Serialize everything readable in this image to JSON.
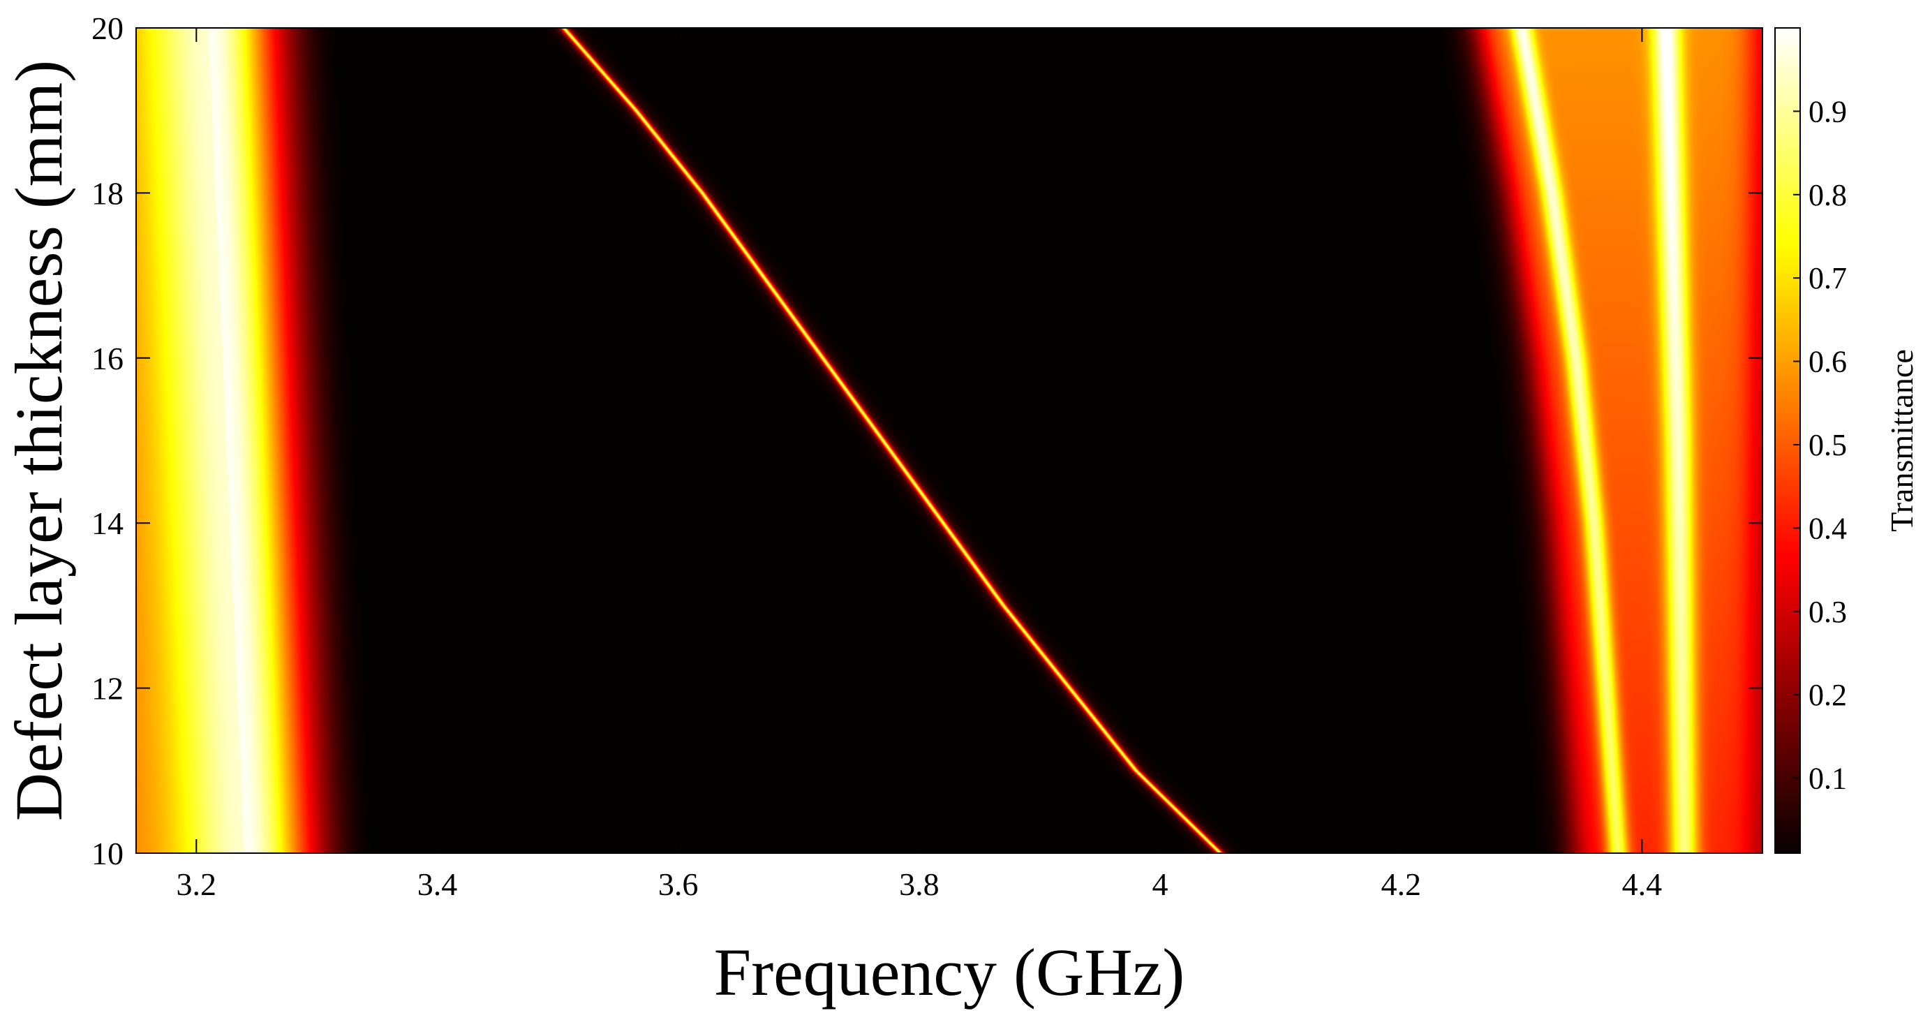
{
  "chart_data": {
    "type": "heatmap",
    "title": "",
    "xlabel": "Frequency (GHz)",
    "ylabel": "Defect layer thickness (mm)",
    "xlim": [
      3.15,
      4.5
    ],
    "ylim": [
      10,
      20
    ],
    "xticks": [
      3.2,
      3.4,
      3.6,
      3.8,
      4,
      4.2,
      4.4
    ],
    "xtick_labels": [
      "3.2",
      "3.4",
      "3.6",
      "3.8",
      "4",
      "4.2",
      "4.4"
    ],
    "yticks": [
      10,
      12,
      14,
      16,
      18,
      20
    ],
    "ytick_labels": [
      "10",
      "12",
      "14",
      "16",
      "18",
      "20"
    ],
    "grid": false,
    "colormap": "hot",
    "colorbar": {
      "label": "Transmittance",
      "range": [
        0.01,
        1.0
      ],
      "ticks": [
        0.1,
        0.2,
        0.3,
        0.4,
        0.5,
        0.6,
        0.7,
        0.8,
        0.9
      ],
      "tick_labels": [
        "0.1",
        "0.2",
        "0.3",
        "0.4",
        "0.5",
        "0.6",
        "0.7",
        "0.8",
        "0.9"
      ]
    },
    "features": [
      {
        "name": "lower passband edge",
        "thickness_mm": [
          10,
          20
        ],
        "center_ghz": [
          3.24,
          3.21
        ],
        "half_width_ghz": 0.075,
        "peak_transmittance": 0.99
      },
      {
        "name": "defect mode",
        "points": [
          {
            "thickness_mm": 10,
            "frequency_ghz": 4.05
          },
          {
            "thickness_mm": 11,
            "frequency_ghz": 3.98
          },
          {
            "thickness_mm": 12,
            "frequency_ghz": 3.925
          },
          {
            "thickness_mm": 13,
            "frequency_ghz": 3.87
          },
          {
            "thickness_mm": 14,
            "frequency_ghz": 3.82
          },
          {
            "thickness_mm": 15,
            "frequency_ghz": 3.77
          },
          {
            "thickness_mm": 16,
            "frequency_ghz": 3.72
          },
          {
            "thickness_mm": 17,
            "frequency_ghz": 3.67
          },
          {
            "thickness_mm": 18,
            "frequency_ghz": 3.62
          },
          {
            "thickness_mm": 19,
            "frequency_ghz": 3.565
          },
          {
            "thickness_mm": 20,
            "frequency_ghz": 3.505
          }
        ],
        "peak_transmittance": 0.85
      },
      {
        "name": "upper passband first fringe",
        "points": [
          {
            "thickness_mm": 10,
            "frequency_ghz": 4.38
          },
          {
            "thickness_mm": 12,
            "frequency_ghz": 4.37
          },
          {
            "thickness_mm": 14,
            "frequency_ghz": 4.36
          },
          {
            "thickness_mm": 16,
            "frequency_ghz": 4.345
          },
          {
            "thickness_mm": 18,
            "frequency_ghz": 4.325
          },
          {
            "thickness_mm": 20,
            "frequency_ghz": 4.3
          }
        ],
        "peak_transmittance": 1.0
      },
      {
        "name": "upper passband second fringe",
        "points": [
          {
            "thickness_mm": 10,
            "frequency_ghz": 4.435
          },
          {
            "thickness_mm": 15,
            "frequency_ghz": 4.43
          },
          {
            "thickness_mm": 20,
            "frequency_ghz": 4.42
          }
        ],
        "peak_transmittance": 1.0
      }
    ]
  }
}
